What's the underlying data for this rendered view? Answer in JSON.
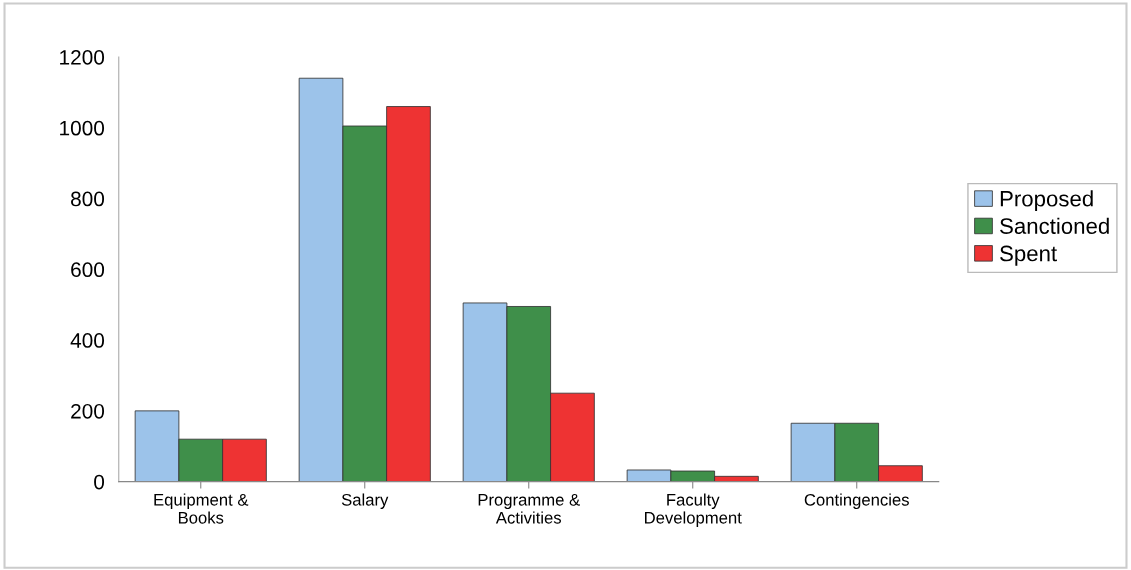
{
  "chart_data": {
    "type": "bar",
    "categories": [
      "Equipment &\nBooks",
      "Salary",
      "Programme &\nActivities",
      "Faculty\nDevelopment",
      "Contingencies"
    ],
    "series": [
      {
        "name": "Proposed",
        "color": "#9cc3ea",
        "values": [
          200,
          1140,
          505,
          33,
          165
        ]
      },
      {
        "name": "Sanctioned",
        "color": "#3f8f4a",
        "values": [
          120,
          1005,
          495,
          30,
          165
        ]
      },
      {
        "name": "Spent",
        "color": "#ee3333",
        "values": [
          120,
          1060,
          250,
          15,
          45
        ]
      }
    ],
    "ylim": [
      0,
      1200
    ],
    "yticks": [
      0,
      200,
      400,
      600,
      800,
      1000,
      1200
    ],
    "grid": false,
    "legend": "right"
  }
}
